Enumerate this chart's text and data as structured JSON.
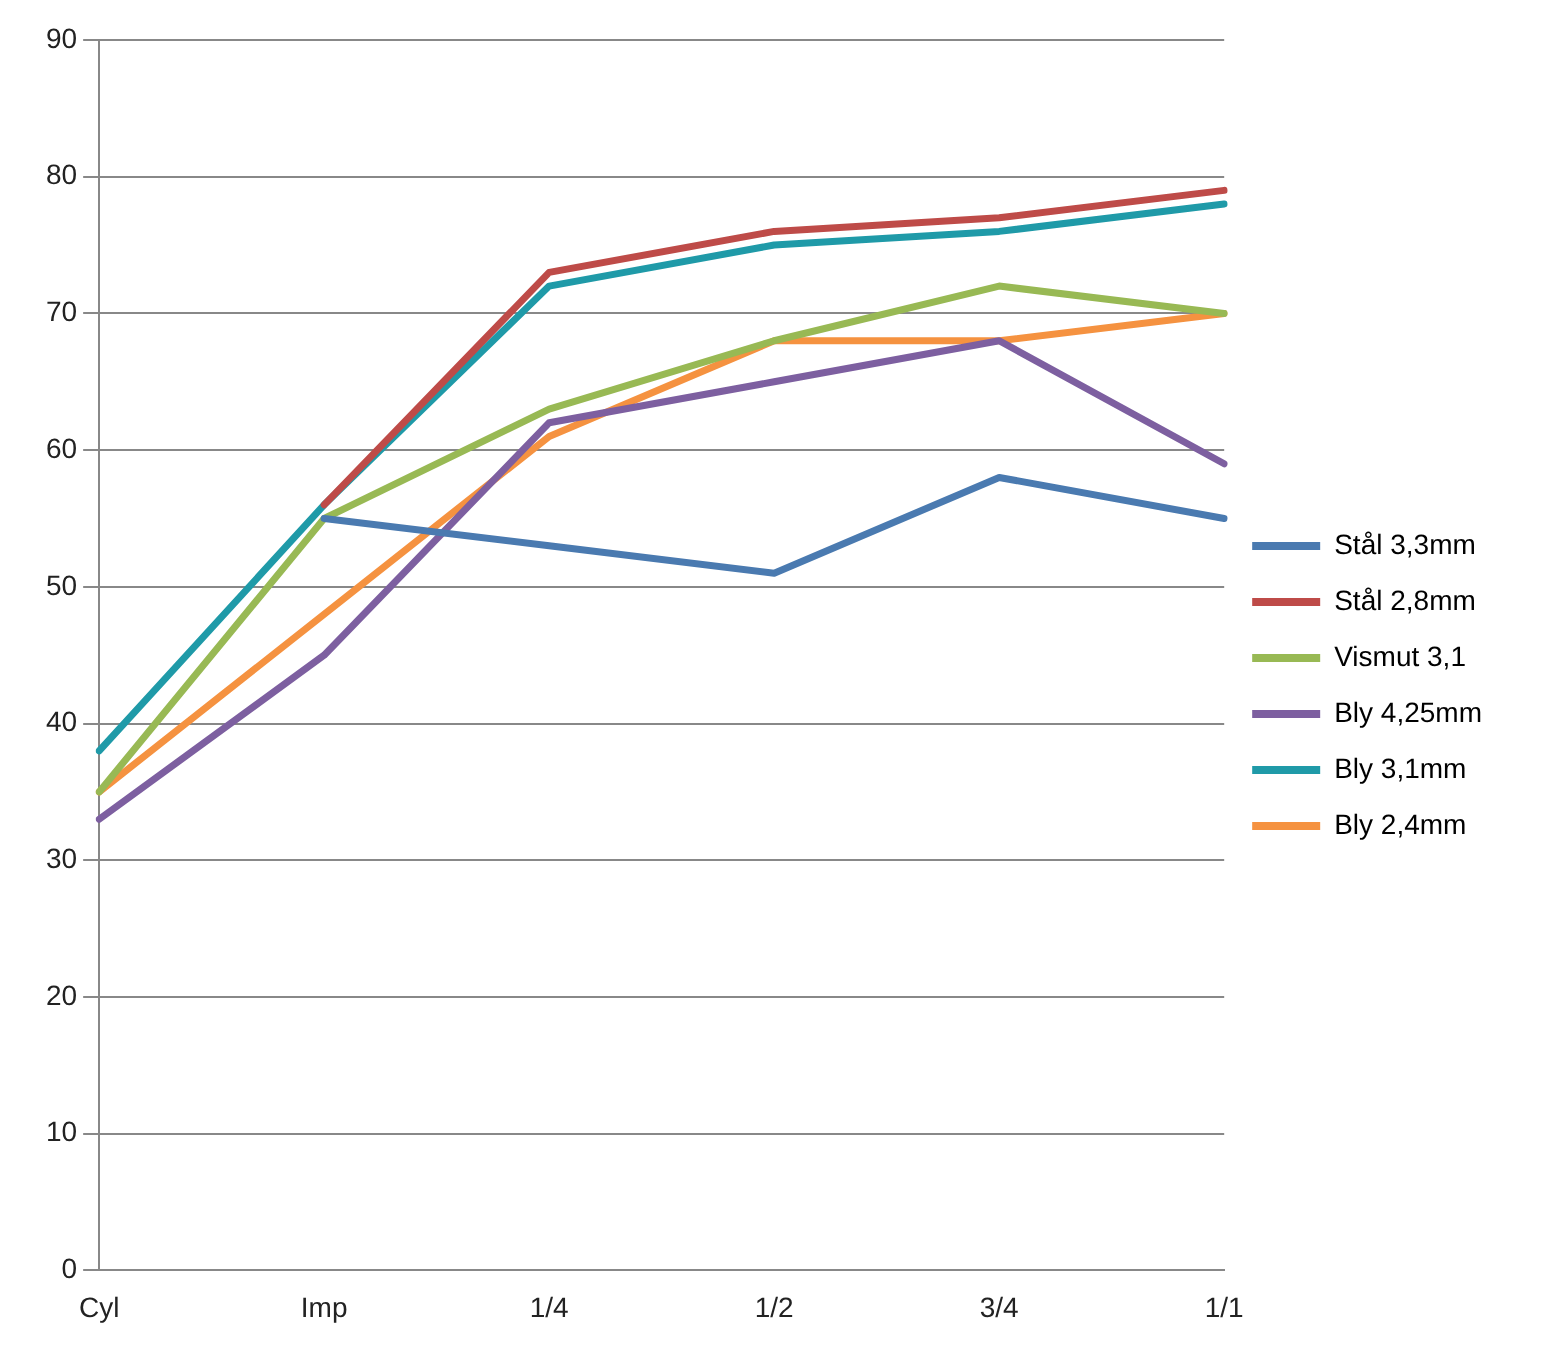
{
  "chart_data": {
    "type": "line",
    "categories": [
      "Cyl",
      "Imp",
      "1/4",
      "1/2",
      "3/4",
      "1/1"
    ],
    "series": [
      {
        "name": "Stål 3,3mm",
        "color": "#4a7ab0",
        "values": [
          null,
          55,
          53,
          51,
          58,
          55
        ]
      },
      {
        "name": "Stål 2,8mm",
        "color": "#be4b48",
        "values": [
          null,
          56,
          73,
          76,
          77,
          79
        ]
      },
      {
        "name": "Vismut 3,1",
        "color": "#98b954",
        "values": [
          35,
          55,
          63,
          68,
          72,
          70
        ]
      },
      {
        "name": "Bly 4,25mm",
        "color": "#7d5fa0",
        "values": [
          33,
          45,
          62,
          65,
          68,
          59
        ]
      },
      {
        "name": "Bly 3,1mm",
        "color": "#1f9aa8",
        "values": [
          38,
          56,
          72,
          75,
          76,
          78
        ]
      },
      {
        "name": "Bly 2,4mm",
        "color": "#f59240",
        "values": [
          35,
          48,
          61,
          68,
          68,
          70
        ]
      }
    ],
    "ylim": [
      0,
      90
    ],
    "yticks": [
      0,
      10,
      20,
      30,
      40,
      50,
      60,
      70,
      80,
      90
    ],
    "grid": "y",
    "legend": "right",
    "marker": "none",
    "line_style": "solid"
  }
}
